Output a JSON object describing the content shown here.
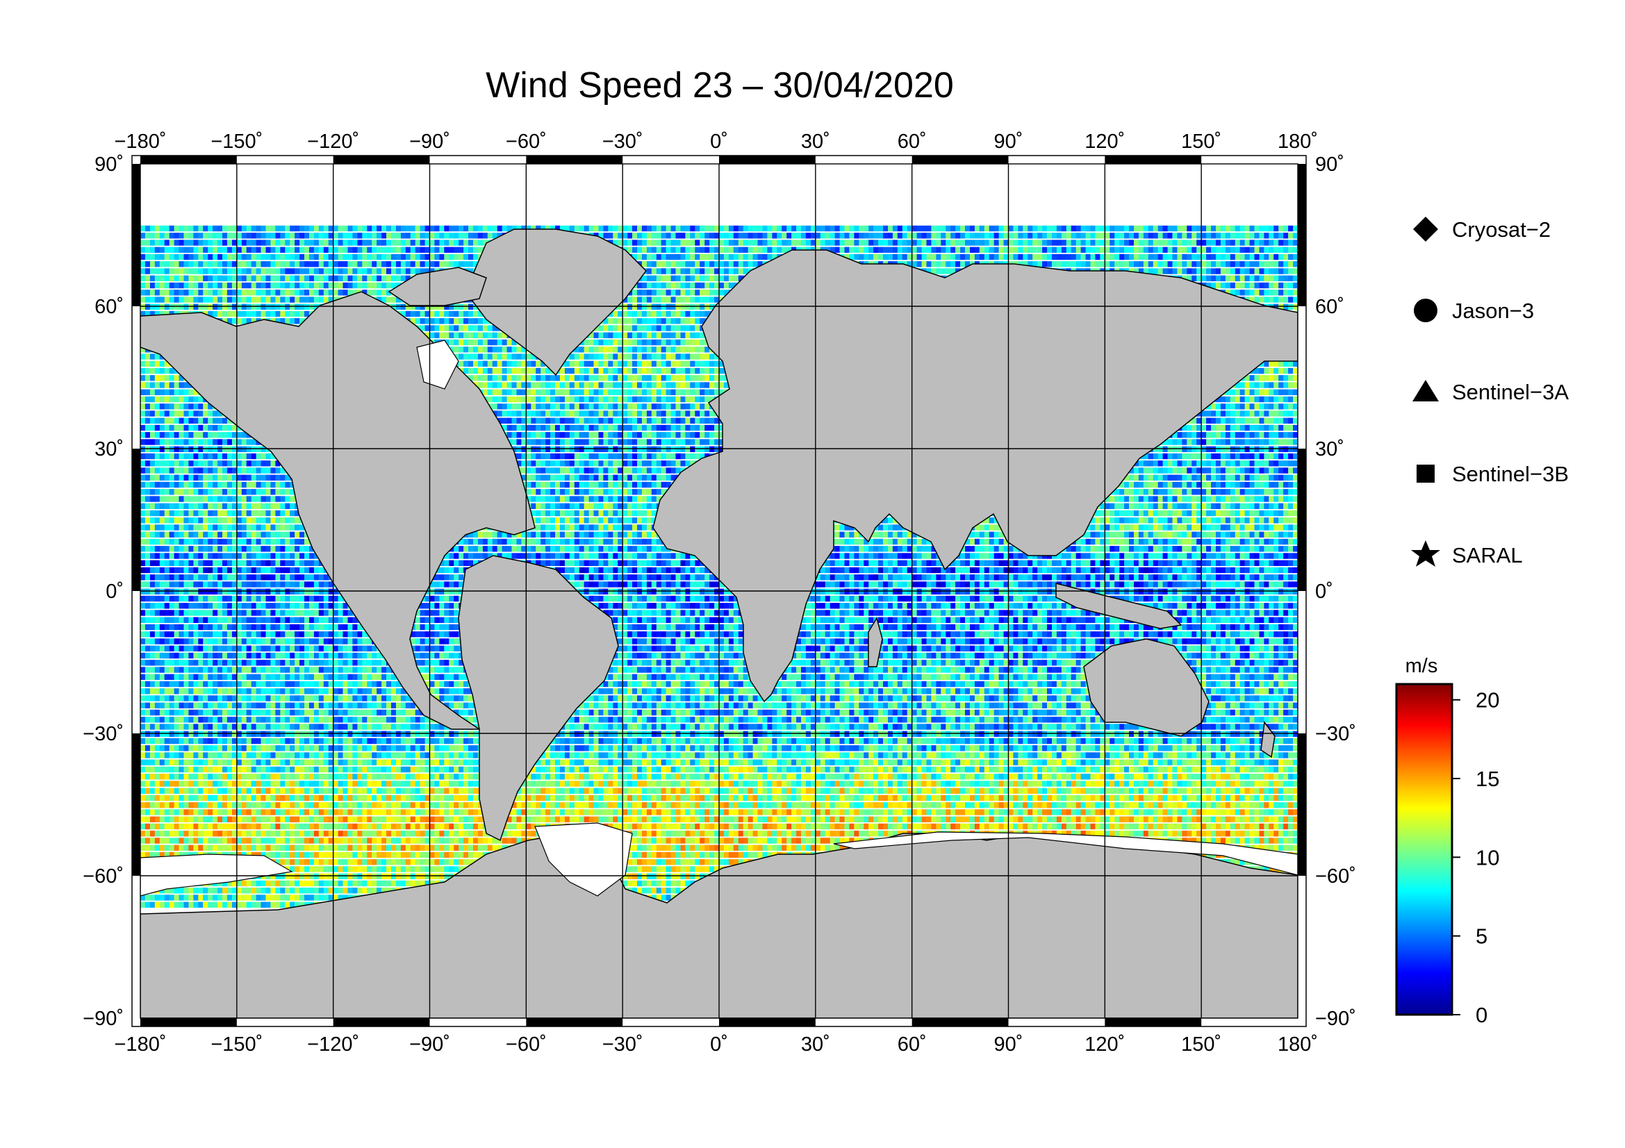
{
  "title": "Wind Speed 23 – 30/04/2020",
  "map": {
    "projection": "equirectangular",
    "lon_range": [
      -180,
      180
    ],
    "lat_range": [
      -90,
      90
    ],
    "lon_ticks": [
      "−180˚",
      "−150˚",
      "−120˚",
      "−90˚",
      "−60˚",
      "−30˚",
      "0˚",
      "30˚",
      "60˚",
      "90˚",
      "120˚",
      "150˚",
      "180˚"
    ],
    "lat_ticks_left": [
      "90˚",
      "60˚",
      "30˚",
      "0˚",
      "−30˚",
      "−60˚",
      "−90˚"
    ],
    "lat_ticks_right": [
      "90˚",
      "60˚",
      "30˚",
      "0˚",
      "−30˚",
      "−60˚",
      "−90˚"
    ],
    "land_color": "#bdbdbd",
    "ice_color": "#ffffff",
    "data_coverage_lat": [
      -67,
      77
    ]
  },
  "legend": {
    "items": [
      {
        "label": "Cryosat−2",
        "marker": "diamond-icon"
      },
      {
        "label": "Jason−3",
        "marker": "circle-icon"
      },
      {
        "label": "Sentinel−3A",
        "marker": "triangle-icon"
      },
      {
        "label": "Sentinel−3B",
        "marker": "square-icon"
      },
      {
        "label": "SARAL",
        "marker": "star-icon"
      }
    ]
  },
  "colorbar": {
    "unit": "m/s",
    "min": 0,
    "max": 21,
    "ticks": [
      "0",
      "5",
      "10",
      "15",
      "20"
    ],
    "tick_values": [
      0,
      5,
      10,
      15,
      20
    ],
    "colormap": [
      "#00008f",
      "#0000ff",
      "#0080ff",
      "#00ffff",
      "#80ff80",
      "#ffff00",
      "#ff8000",
      "#ff0000",
      "#800000"
    ]
  },
  "chart_data": {
    "type": "heatmap",
    "title": "Wind Speed 23 – 30/04/2020",
    "variable": "wind speed",
    "unit": "m/s",
    "value_range": [
      0,
      21
    ],
    "zonal_mean_profile": {
      "lat": [
        75,
        60,
        45,
        30,
        15,
        5,
        0,
        -10,
        -20,
        -30,
        -40,
        -50,
        -60,
        -66
      ],
      "wind_speed": [
        7,
        8,
        9,
        6,
        9,
        5,
        6,
        6,
        8,
        7,
        11,
        13,
        11,
        9
      ]
    }
  }
}
